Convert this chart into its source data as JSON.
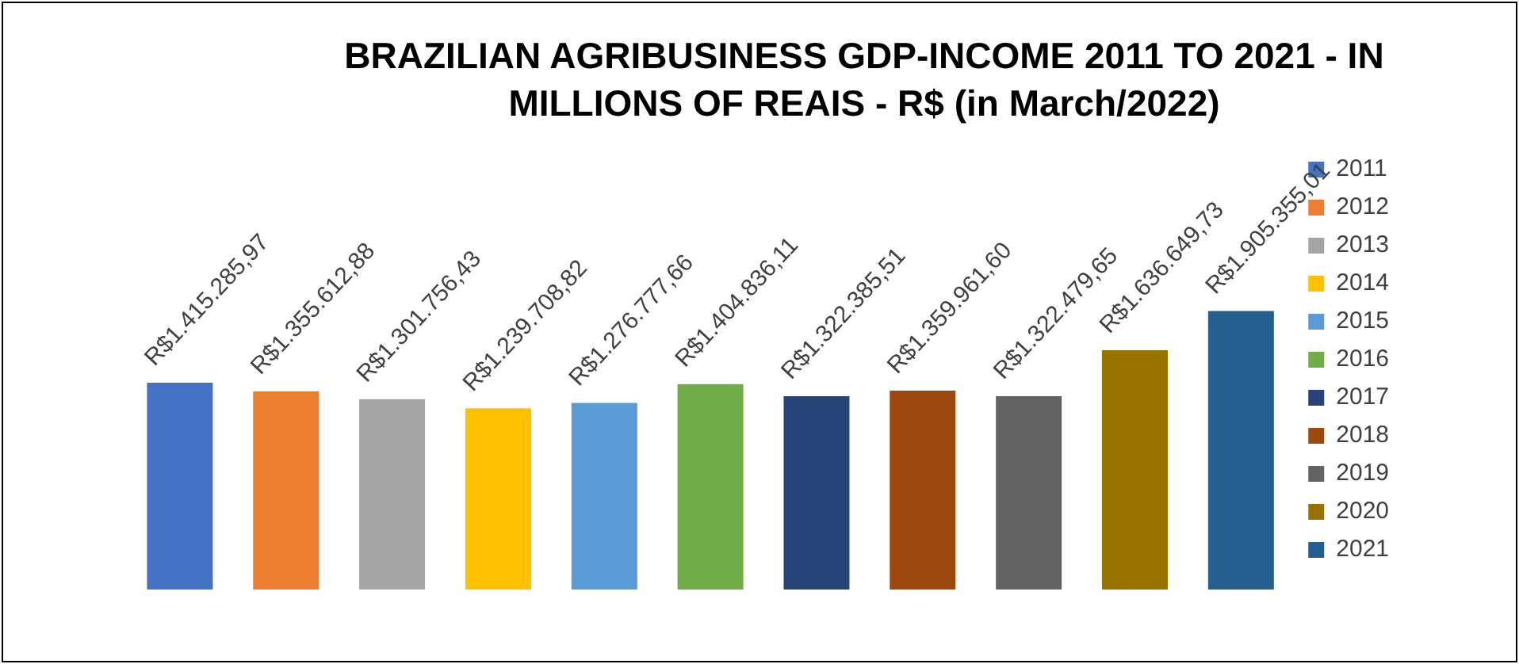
{
  "chart_data": {
    "type": "bar",
    "title": "BRAZILIAN AGRIBUSINESS GDP-INCOME 2011 TO 2021 - IN MILLIONS OF REAIS - R$ (in March/2022)",
    "categories": [
      null,
      null,
      null,
      null,
      null,
      null,
      null,
      null,
      null,
      null,
      null
    ],
    "legend": "right",
    "stacked": true,
    "series": [
      {
        "name": "2011",
        "color": "#4472c4",
        "values": [
          1415285.97,
          null,
          null,
          null,
          null,
          null,
          null,
          null,
          null,
          null,
          null
        ],
        "value_labels": [
          "R$1.415.285,97",
          null,
          null,
          null,
          null,
          null,
          null,
          null,
          null,
          null,
          null
        ]
      },
      {
        "name": "2012",
        "color": "#ed7d31",
        "values": [
          null,
          1355612.88,
          null,
          null,
          null,
          null,
          null,
          null,
          null,
          null,
          null
        ],
        "value_labels": [
          null,
          "R$1.355.612,88",
          null,
          null,
          null,
          null,
          null,
          null,
          null,
          null,
          null
        ]
      },
      {
        "name": "2013",
        "color": "#a5a5a5",
        "values": [
          null,
          null,
          1301756.43,
          null,
          null,
          null,
          null,
          null,
          null,
          null,
          null
        ],
        "value_labels": [
          null,
          null,
          "R$1.301.756,43",
          null,
          null,
          null,
          null,
          null,
          null,
          null,
          null
        ]
      },
      {
        "name": "2014",
        "color": "#ffc000",
        "values": [
          null,
          null,
          null,
          1239708.82,
          null,
          null,
          null,
          null,
          null,
          null,
          null
        ],
        "value_labels": [
          null,
          null,
          null,
          "R$1.239.708,82",
          null,
          null,
          null,
          null,
          null,
          null,
          null
        ]
      },
      {
        "name": "2015",
        "color": "#5b9bd5",
        "values": [
          null,
          null,
          null,
          null,
          1276777.66,
          null,
          null,
          null,
          null,
          null,
          null
        ],
        "value_labels": [
          null,
          null,
          null,
          null,
          "R$1.276.777,66",
          null,
          null,
          null,
          null,
          null,
          null
        ]
      },
      {
        "name": "2016",
        "color": "#70ad47",
        "values": [
          null,
          null,
          null,
          null,
          null,
          1404836.11,
          null,
          null,
          null,
          null,
          null
        ],
        "value_labels": [
          null,
          null,
          null,
          null,
          null,
          "R$1.404.836,11",
          null,
          null,
          null,
          null,
          null
        ]
      },
      {
        "name": "2017",
        "color": "#264478",
        "values": [
          null,
          null,
          null,
          null,
          null,
          null,
          1322385.51,
          null,
          null,
          null,
          null
        ],
        "value_labels": [
          null,
          null,
          null,
          null,
          null,
          null,
          "R$1.322.385,51",
          null,
          null,
          null,
          null
        ]
      },
      {
        "name": "2018",
        "color": "#9e480e",
        "values": [
          null,
          null,
          null,
          null,
          null,
          null,
          null,
          1359961.6,
          null,
          null,
          null
        ],
        "value_labels": [
          null,
          null,
          null,
          null,
          null,
          null,
          null,
          "R$1.359.961,60",
          null,
          null,
          null
        ]
      },
      {
        "name": "2019",
        "color": "#636363",
        "values": [
          null,
          null,
          null,
          null,
          null,
          null,
          null,
          null,
          1322479.65,
          null,
          null
        ],
        "value_labels": [
          null,
          null,
          null,
          null,
          null,
          null,
          null,
          null,
          "R$1.322.479,65",
          null,
          null
        ]
      },
      {
        "name": "2020",
        "color": "#997300",
        "values": [
          null,
          null,
          null,
          null,
          null,
          null,
          null,
          null,
          null,
          1636649.73,
          null
        ],
        "value_labels": [
          null,
          null,
          null,
          null,
          null,
          null,
          null,
          null,
          null,
          "R$1.636.649,73",
          null
        ]
      },
      {
        "name": "2021",
        "color": "#255e91",
        "values": [
          null,
          null,
          null,
          null,
          null,
          null,
          null,
          null,
          null,
          null,
          1905355.01
        ],
        "value_labels": [
          null,
          null,
          null,
          null,
          null,
          null,
          null,
          null,
          null,
          null,
          "R$1.905.355,01"
        ]
      }
    ]
  }
}
